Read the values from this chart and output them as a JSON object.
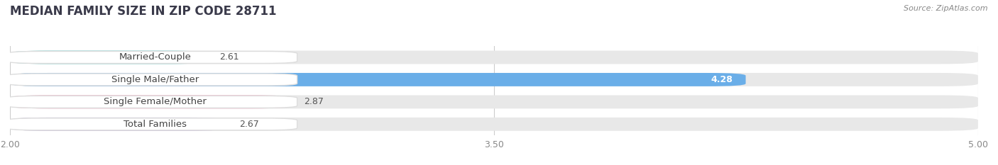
{
  "title": "MEDIAN FAMILY SIZE IN ZIP CODE 28711",
  "source": "Source: ZipAtlas.com",
  "categories": [
    "Married-Couple",
    "Single Male/Father",
    "Single Female/Mother",
    "Total Families"
  ],
  "values": [
    2.61,
    4.28,
    2.87,
    2.67
  ],
  "bar_colors": [
    "#72ceca",
    "#6aaee8",
    "#f4a8c0",
    "#c4b8d8"
  ],
  "label_border_colors": [
    "#72ceca",
    "#6aaee8",
    "#f4a8c0",
    "#c4b8d8"
  ],
  "xmin": 2.0,
  "xmax": 5.0,
  "xticks": [
    2.0,
    3.5,
    5.0
  ],
  "bar_height": 0.6,
  "bg_color": "#ffffff",
  "bar_bg_color": "#e8e8e8",
  "title_fontsize": 12,
  "label_fontsize": 9.5,
  "value_fontsize": 9,
  "source_fontsize": 8,
  "title_color": "#3a3a4a",
  "label_color": "#444444",
  "value_color_dark": "#555555",
  "value_color_light": "#ffffff",
  "grid_color": "#cccccc",
  "tick_color": "#888888"
}
